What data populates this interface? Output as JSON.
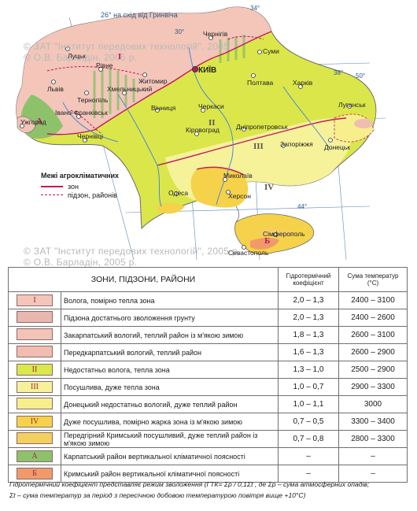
{
  "map": {
    "top_label": "26° на схід від Гринвіча",
    "degrees": [
      "34°",
      "30°",
      "38°",
      "50°",
      "44°"
    ],
    "watermarks": [
      "© ЗАТ \"Інститут передових технологій\", 2005",
      "© О.В. Барладін, 2005 р.",
      "© ЗАТ \"Інститут передових технологій\", 2005 р.",
      "© О.В. Барладін, 2005 р."
    ],
    "legend_title": "Межі агрокліматичних",
    "legend_items": [
      "зон",
      "підзон, районів"
    ],
    "zone_labels": [
      "I",
      "II",
      "III",
      "IV",
      "A",
      "Б"
    ],
    "cities": {
      "kyiv": "КИЇВ",
      "chernihiv": "Чернігів",
      "sumy": "Суми",
      "lutsk": "Луцьк",
      "rivne": "Рівне",
      "zhytomyr": "Житомир",
      "lviv": "Львів",
      "ternopil": "Тернопіль",
      "khmelnytskyi": "Хмельницький",
      "poltava": "Полтава",
      "kharkiv": "Харків",
      "vinnytsia": "Вінниця",
      "cherkasy": "Черкаси",
      "ivano": "Івано-Франківськ",
      "uzhhorod": "Ужгород",
      "chernivtsi": "Чернівці",
      "kirovohrad": "Кіровоград",
      "dnipro": "Дніпропетровськ",
      "luhansk": "Луганськ",
      "zaporizhzhia": "Запоріжжя",
      "donetsk": "Донецьк",
      "mykolaiv": "Миколаїв",
      "odesa": "Одеса",
      "kherson": "Херсон",
      "simferopol": "Сімферополь",
      "sevastopol": "Севастополь"
    }
  },
  "table": {
    "headers": [
      "ЗОНИ, ПІДЗОНИ, РАЙОНИ",
      "Гідротермічний коефіцієнт",
      "Сума температур (°С)"
    ],
    "rows": [
      {
        "symbol": "I",
        "color": "#f3c6b9",
        "desc": "Волога, помірно тепла зона",
        "gtk": "2,0 – 1,3",
        "sum": "2400 – 3100"
      },
      {
        "symbol": "",
        "color": "#e9b7ae",
        "desc": "Підзона достатнього зволоження грунту",
        "gtk": "2,0 – 1,3",
        "sum": "2400 – 2600"
      },
      {
        "symbol": "",
        "color": "#f2c4b7",
        "desc": "Закарпатський вологий, теплий район із м'якою зимою",
        "gtk": "1,8 – 1,3",
        "sum": "2600 – 3100"
      },
      {
        "symbol": "",
        "color": "#f1bdb0",
        "desc": "Передкарпатський вологий, теплий район",
        "gtk": "1,6 – 1,3",
        "sum": "2600 – 2900"
      },
      {
        "symbol": "II",
        "color": "#d9e84a",
        "desc": "Недостатньо волога, тепла зона",
        "gtk": "1,3 – 1,0",
        "sum": "2500 – 2900"
      },
      {
        "symbol": "III",
        "color": "#f6f29a",
        "desc": "Посушлива, дуже тепла зона",
        "gtk": "1,0 – 0,7",
        "sum": "2900 – 3300"
      },
      {
        "symbol": "",
        "color": "#f6ef8c",
        "desc": "Донецький недостатньо вологий, дуже теплий район",
        "gtk": "1,0 – 1,1",
        "sum": "3000"
      },
      {
        "symbol": "IV",
        "color": "#f6d24a",
        "desc": "Дуже посушлива, помірно жарка зона із м'якою зимою",
        "gtk": "0,7 – 0,5",
        "sum": "3300 – 3400"
      },
      {
        "symbol": "",
        "color": "#f5cf5e",
        "desc": "Передгірний Кримський посушливий, дуже теплий район із м'якою зимою",
        "gtk": "0,7 – 0,8",
        "sum": "2800 – 3300"
      },
      {
        "symbol": "A",
        "color": "#8dc26b",
        "desc": "Карпатський район вертикальної кліматичної поясності",
        "gtk": "–",
        "sum": "–"
      },
      {
        "symbol": "Б",
        "color": "#f09a6a",
        "desc": "Кримський район вертикальної кліматичної поясності",
        "gtk": "–",
        "sum": "–"
      }
    ]
  },
  "footnote": {
    "line1": "Гідротермічний коефіцієнт представляє режим зволоження (ГТК= Σр / 0,1Σt , де Σр – сума атмосферних опадів;",
    "line2": "Σt – сума температур за період з пересічною добовою температурою повітря вище +10°С)"
  }
}
